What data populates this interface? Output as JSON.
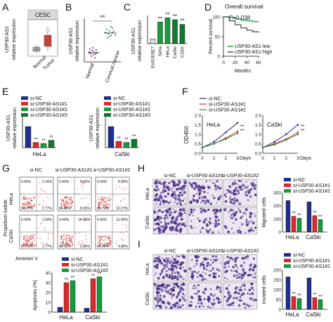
{
  "figure": {
    "panel_labels": [
      "A",
      "B",
      "C",
      "D",
      "E",
      "F",
      "G",
      "H",
      "I"
    ],
    "panel_a": {
      "title": "CESC",
      "ylabel_1": "USP30-AS1",
      "ylabel_2": "relative expression",
      "groups": [
        "Normal",
        "Tumor"
      ]
    },
    "panel_b": {
      "ylabel_1": "USP30-AS1",
      "ylabel_2": "relative expression",
      "groups": [
        "Normal",
        "Cervical cancer"
      ],
      "sig": "**"
    },
    "panel_c": {
      "ylabel_1": "USP30-AS1",
      "ylabel_2": "relative expression",
      "categories": [
        "Ect1/E6E7",
        "SiHa",
        "HeLa",
        "CaSki",
        "C33A"
      ],
      "sig": "**"
    },
    "panel_d": {
      "title": "Overall survival",
      "pvalue": "P=0.038",
      "ylabel": "Percent survival",
      "xlabel": "Months",
      "yticks": [
        "0",
        "50",
        "100"
      ],
      "xticks": [
        "0",
        "20",
        "40",
        "60"
      ],
      "legend": [
        "USP30-AS1-low",
        "USP30-AS1-high"
      ]
    },
    "panel_e": {
      "legend": [
        "si-NC",
        "si-USP30-AS1#1",
        "si-USP30-AS1#2",
        "si-USP30-AS1#3"
      ],
      "ylabel_1": "USP30-AS1",
      "ylabel_2": "relative expression",
      "cell_lines": [
        "HeLa",
        "CaSki"
      ],
      "sig": "**"
    },
    "panel_f": {
      "legend": [
        "si-NC",
        "si-USP30-AS1#1",
        "si-USP30-AS1#2"
      ],
      "ylabel": "OD450",
      "xlabel": "Days",
      "xticks": [
        "0",
        "1",
        "2",
        "3"
      ],
      "yticks": [
        "0.0",
        "0.5",
        "1.0",
        "1.5",
        "2.0"
      ],
      "cell_lines": [
        "HeLa",
        "CaSki"
      ],
      "sig": "**"
    },
    "panel_g": {
      "columns": [
        "si-NC",
        "si-USP30-AS1#1",
        "si-USP30-AS1#2"
      ],
      "rows": [
        "HeLa",
        "CaSki"
      ],
      "ylabel": "Propidium Iodide",
      "xlabel": "Annexin V",
      "percents": [
        [
          "0.40%",
          "2.16%",
          "94.67%",
          "2.77%"
        ],
        [
          "0.40%",
          "6.92%",
          "84.48%",
          "8.20%"
        ],
        [
          "0.40%",
          "8.53%",
          "80.70%",
          "10.27%"
        ],
        [
          "0.40%",
          "1.54%",
          "94.69%",
          "1.77%"
        ],
        [
          "0.40%",
          "14.88%",
          "80.18%",
          "5.85%"
        ],
        [
          "0.40%",
          "11.50%",
          "84.25%",
          "4.80%"
        ]
      ],
      "bar_legend": [
        "si-NC",
        "si-USP30-AS1#1",
        "si-USP30-AS1#2"
      ],
      "bar_ylabel": "Apoptosis (%)",
      "bar_yticks": [
        "0",
        "10",
        "20",
        "30",
        "40"
      ],
      "cell_lines": [
        "HeLa",
        "CaSki"
      ],
      "sig": "**"
    },
    "panel_h": {
      "columns": [
        "si-NC",
        "si-USP30-AS1#1",
        "si-USP30-AS1#2"
      ],
      "rows": [
        "HeLa",
        "CaSki"
      ],
      "legend": [
        "si-NC",
        "si-USP30-AS1#1",
        "si-USP30-AS1#2"
      ],
      "ylabel": "Migrated cells",
      "yticks": [
        "0",
        "100",
        "200",
        "300"
      ],
      "cell_lines": [
        "HeLa",
        "CaSki"
      ],
      "sig": "**"
    },
    "panel_i": {
      "columns": [
        "si-NC",
        "si-USP30-AS1#1",
        "si-USP30-AS1#2"
      ],
      "rows": [
        "HeLa",
        "CaSki"
      ],
      "legend": [
        "si-NC",
        "si-USP30-AS1#1",
        "si-USP30-AS1#2"
      ],
      "ylabel": "Invaded cells",
      "yticks": [
        "0",
        "50",
        "100",
        "150",
        "200"
      ],
      "cell_lines": [
        "HeLa",
        "CaSki"
      ],
      "sig": "**"
    }
  },
  "colors": {
    "nc": "#1f2f8c",
    "g1": "#e0272b",
    "g2": "#169a3c",
    "g3": "#0f7a2e",
    "tumor": "#c9403a",
    "normal": "#8a8a8a",
    "stain": "#4b2a87",
    "flow": "#e23a3a"
  },
  "chart_data": [
    {
      "id": "C",
      "type": "bar",
      "categories": [
        "Ect1/E6E7",
        "SiHa",
        "HeLa",
        "CaSki",
        "C33A"
      ],
      "values": [
        1.0,
        4.6,
        5.5,
        5.1,
        4.1
      ],
      "ylim": [
        0,
        6
      ]
    },
    {
      "id": "D",
      "type": "line",
      "series": [
        {
          "name": "USP30-AS1-low",
          "x": [
            0,
            10,
            20,
            30,
            40,
            50,
            60
          ],
          "values": [
            100,
            98,
            95,
            92,
            90,
            88,
            88
          ]
        },
        {
          "name": "USP30-AS1-high",
          "x": [
            0,
            10,
            20,
            30,
            40,
            50,
            60
          ],
          "values": [
            100,
            90,
            80,
            72,
            66,
            62,
            60
          ]
        }
      ],
      "xlim": [
        0,
        60
      ],
      "ylim": [
        0,
        100
      ]
    },
    {
      "id": "E-HeLa",
      "type": "bar",
      "categories": [
        "si-NC",
        "si-USP30-AS1#1",
        "si-USP30-AS1#2",
        "si-USP30-AS1#3"
      ],
      "values": [
        1.0,
        0.25,
        0.2,
        0.35
      ],
      "ylim": [
        0,
        1.5
      ]
    },
    {
      "id": "E-CaSki",
      "type": "bar",
      "categories": [
        "si-NC",
        "si-USP30-AS1#1",
        "si-USP30-AS1#2",
        "si-USP30-AS1#3"
      ],
      "values": [
        1.0,
        0.3,
        0.25,
        0.4
      ],
      "ylim": [
        0,
        1.5
      ]
    },
    {
      "id": "F-HeLa",
      "type": "line",
      "x": [
        0,
        1,
        2,
        3
      ],
      "series": [
        {
          "name": "si-NC",
          "values": [
            0.3,
            0.6,
            1.1,
            1.6
          ]
        },
        {
          "name": "si-USP30-AS1#1",
          "values": [
            0.3,
            0.5,
            0.8,
            1.15
          ]
        },
        {
          "name": "si-USP30-AS1#2",
          "values": [
            0.3,
            0.5,
            0.75,
            1.05
          ]
        }
      ],
      "ylim": [
        0,
        2.0
      ]
    },
    {
      "id": "F-CaSki",
      "type": "line",
      "x": [
        0,
        1,
        2,
        3
      ],
      "series": [
        {
          "name": "si-NC",
          "values": [
            0.3,
            0.6,
            1.0,
            1.5
          ]
        },
        {
          "name": "si-USP30-AS1#1",
          "values": [
            0.3,
            0.5,
            0.75,
            1.1
          ]
        },
        {
          "name": "si-USP30-AS1#2",
          "values": [
            0.3,
            0.45,
            0.7,
            1.0
          ]
        }
      ],
      "ylim": [
        0,
        2.0
      ]
    },
    {
      "id": "G-bar",
      "type": "bar",
      "categories": [
        "HeLa",
        "CaSki"
      ],
      "series": [
        {
          "name": "si-NC",
          "values": [
            5,
            4
          ]
        },
        {
          "name": "si-USP30-AS1#1",
          "values": [
            30,
            34
          ]
        },
        {
          "name": "si-USP30-AS1#2",
          "values": [
            32,
            36
          ]
        }
      ],
      "ylim": [
        0,
        40
      ]
    },
    {
      "id": "H-bar",
      "type": "bar",
      "categories": [
        "HeLa",
        "CaSki"
      ],
      "series": [
        {
          "name": "si-NC",
          "values": [
            240,
            230
          ]
        },
        {
          "name": "si-USP30-AS1#1",
          "values": [
            120,
            125
          ]
        },
        {
          "name": "si-USP30-AS1#2",
          "values": [
            105,
            95
          ]
        }
      ],
      "ylim": [
        0,
        300
      ]
    },
    {
      "id": "I-bar",
      "type": "bar",
      "categories": [
        "HeLa",
        "CaSki"
      ],
      "series": [
        {
          "name": "si-NC",
          "values": [
            165,
            160
          ]
        },
        {
          "name": "si-USP30-AS1#1",
          "values": [
            65,
            60
          ]
        },
        {
          "name": "si-USP30-AS1#2",
          "values": [
            55,
            50
          ]
        }
      ],
      "ylim": [
        0,
        200
      ]
    }
  ]
}
